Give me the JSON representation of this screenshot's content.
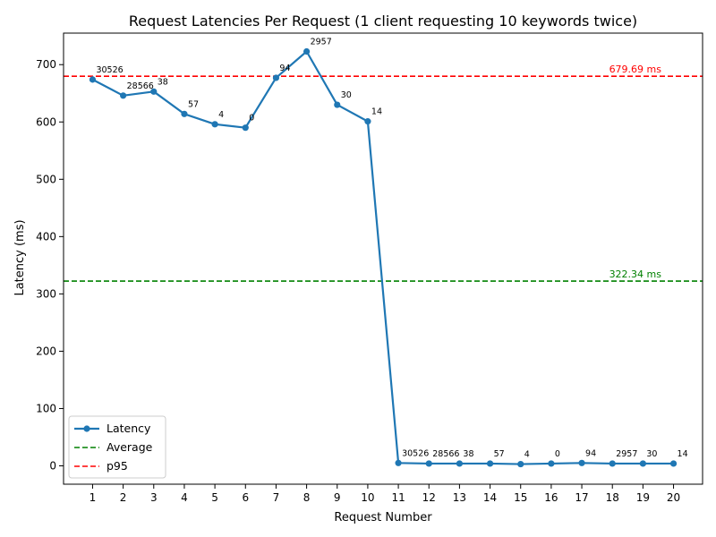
{
  "chart_data": {
    "type": "line",
    "title": "Request Latencies Per Request (1 client requesting 10 keywords twice)",
    "xlabel": "Request Number",
    "ylabel": "Latency (ms)",
    "x": [
      1,
      2,
      3,
      4,
      5,
      6,
      7,
      8,
      9,
      10,
      11,
      12,
      13,
      14,
      15,
      16,
      17,
      18,
      19,
      20
    ],
    "xlim": [
      0.05,
      20.95
    ],
    "ylim": [
      -32,
      755
    ],
    "y_ticks": [
      0,
      100,
      200,
      300,
      400,
      500,
      600,
      700
    ],
    "series": [
      {
        "name": "Latency",
        "color": "#1f77b4",
        "values": [
          674,
          646,
          653,
          614,
          596,
          590,
          677,
          723,
          630,
          601,
          5,
          4,
          4,
          4,
          3,
          4,
          5,
          4,
          4,
          4
        ],
        "point_labels": [
          "30526",
          "28566",
          "38",
          "57",
          "4",
          "0",
          "94",
          "2957",
          "30",
          "14",
          "30526",
          "28566",
          "38",
          "57",
          "4",
          "0",
          "94",
          "2957",
          "30",
          "14"
        ]
      }
    ],
    "reference_lines": [
      {
        "name": "Average",
        "value": 322.34,
        "label": "322.34 ms",
        "color": "#008000"
      },
      {
        "name": "p95",
        "value": 679.69,
        "label": "679.69 ms",
        "color": "#ff0000"
      }
    ],
    "legend": {
      "position": "lower-left",
      "entries": [
        "Latency",
        "Average",
        "p95"
      ]
    },
    "grid": false
  }
}
